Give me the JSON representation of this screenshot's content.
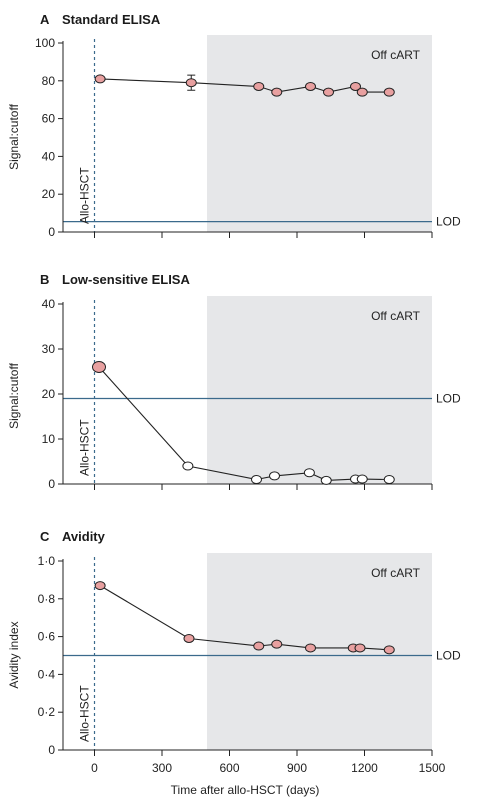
{
  "colors": {
    "off_cart_shade": "#e6e7e9",
    "lod_line": "#3b6a8c",
    "allo_line": "#3b6a8c",
    "marker_filled": "#e8a0a0",
    "marker_open": "#ffffff",
    "marker_stroke": "#222222",
    "series_line": "#222222",
    "axis": "#222222"
  },
  "chart_data": [
    {
      "type": "line",
      "panel_letter": "A",
      "title": "Standard ELISA",
      "ylabel": "Signal:cutoff",
      "xlabel": "",
      "ylim": [
        0,
        100
      ],
      "yticks": [
        "0",
        "20",
        "40",
        "60",
        "80",
        "100"
      ],
      "ytick_values": [
        0,
        20,
        40,
        60,
        80,
        100
      ],
      "xlim": [
        -140,
        1500
      ],
      "xtick_values": [
        0,
        300,
        600,
        900,
        1200,
        1500
      ],
      "xtick_labels": [
        "",
        "",
        "",
        "",
        "",
        ""
      ],
      "lod": 5.5,
      "lod_label": "LOD",
      "off_cart_start": 500,
      "off_cart_label": "Off cART",
      "allo_label": "Allo-HSCT",
      "allo_x": 0,
      "marker": "filled",
      "series": [
        {
          "x": [
            25,
            430,
            730,
            810,
            960,
            1040,
            1160,
            1190,
            1310
          ],
          "y": [
            81,
            79,
            77,
            74,
            77,
            74,
            77,
            74,
            74
          ],
          "err": [
            0,
            4,
            0,
            0,
            0,
            0,
            0,
            0,
            0
          ]
        }
      ]
    },
    {
      "type": "line",
      "panel_letter": "B",
      "title": "Low-sensitive ELISA",
      "ylabel": "Signal:cutoff",
      "xlabel": "",
      "ylim": [
        0,
        40
      ],
      "yticks": [
        "0",
        "10",
        "20",
        "30",
        "40"
      ],
      "ytick_values": [
        0,
        10,
        20,
        30,
        40
      ],
      "xlim": [
        -140,
        1500
      ],
      "xtick_values": [
        0,
        300,
        600,
        900,
        1200,
        1500
      ],
      "xtick_labels": [
        "",
        "",
        "",
        "",
        "",
        ""
      ],
      "lod": 19,
      "lod_label": "LOD",
      "off_cart_start": 500,
      "off_cart_label": "Off cART",
      "allo_label": "Allo-HSCT",
      "allo_x": 0,
      "marker": "open",
      "first_point_filled": true,
      "series": [
        {
          "x": [
            20,
            415,
            720,
            800,
            955,
            1030,
            1160,
            1190,
            1310
          ],
          "y": [
            26,
            4,
            1,
            1.8,
            2.5,
            0.8,
            1.1,
            1.1,
            1
          ],
          "err": [
            0,
            0,
            0,
            0,
            0,
            0,
            0,
            0,
            0
          ]
        }
      ]
    },
    {
      "type": "line",
      "panel_letter": "C",
      "title": "Avidity",
      "ylabel": "Avidity index",
      "xlabel": "Time after allo-HSCT (days)",
      "ylim": [
        0,
        1.0
      ],
      "yticks": [
        "0",
        "0·2",
        "0·4",
        "0·6",
        "0·8",
        "1·0"
      ],
      "ytick_values": [
        0,
        0.2,
        0.4,
        0.6,
        0.8,
        1.0
      ],
      "xlim": [
        -140,
        1500
      ],
      "xtick_values": [
        0,
        300,
        600,
        900,
        1200,
        1500
      ],
      "xtick_labels": [
        "0",
        "300",
        "600",
        "900",
        "1200",
        "1500"
      ],
      "lod": 0.5,
      "lod_label": "LOD",
      "off_cart_start": 500,
      "off_cart_label": "Off cART",
      "allo_label": "Allo-HSCT",
      "allo_x": 0,
      "marker": "filled",
      "series": [
        {
          "x": [
            25,
            420,
            730,
            810,
            960,
            1150,
            1180,
            1310
          ],
          "y": [
            0.87,
            0.59,
            0.55,
            0.56,
            0.54,
            0.54,
            0.54,
            0.53
          ],
          "err": [
            0,
            0,
            0,
            0,
            0,
            0,
            0,
            0
          ]
        }
      ]
    }
  ]
}
